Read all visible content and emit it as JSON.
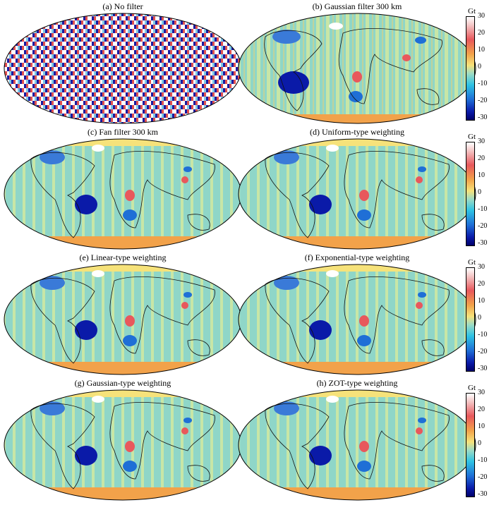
{
  "panels": [
    {
      "id": "a",
      "title": "(a) No filter"
    },
    {
      "id": "b",
      "title": "(b) Gaussian filter 300 km"
    },
    {
      "id": "c",
      "title": "(c) Fan filter 300 km"
    },
    {
      "id": "d",
      "title": "(d) Uniform-type weighting"
    },
    {
      "id": "e",
      "title": "(e) Linear-type weighting"
    },
    {
      "id": "f",
      "title": "(f) Exponential-type weighting"
    },
    {
      "id": "g",
      "title": "(g) Gaussian-type weighting"
    },
    {
      "id": "h",
      "title": "(h) ZOT-type weighting"
    }
  ],
  "colorbar": {
    "unit": "Gt",
    "ticks": [
      "30",
      "20",
      "10",
      "0",
      "-10",
      "-20",
      "-30"
    ],
    "vmin": -30,
    "vmax": 30
  },
  "colors": {
    "ocean": "#8fd6c8",
    "stripe_light": "#c8e6a6",
    "stripe_warm": "#f0d070",
    "land_outline": "#111111",
    "mass_loss": "#0a1aa8",
    "mass_gain": "#e8585c",
    "ice_white": "#ffffff"
  }
}
